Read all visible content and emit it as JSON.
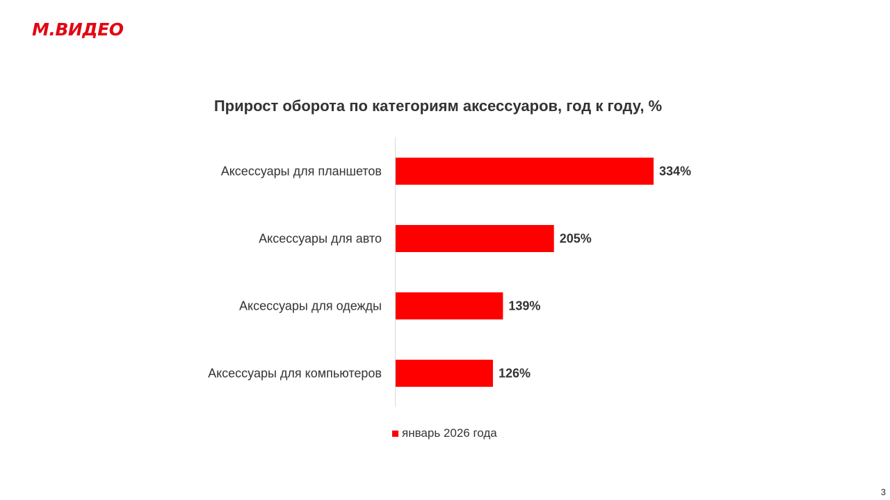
{
  "brand": {
    "logo_text": "М.ВИДЕО",
    "color": "#e30613"
  },
  "page_number": "3",
  "chart_data": {
    "type": "bar",
    "orientation": "horizontal",
    "title": "Прирост оборота по категориям аксессуаров, год к году, %",
    "categories": [
      "Аксессуары для планшетов",
      "Аксессуары для авто",
      "Аксессуары для одежды",
      "Аксессуары для компьютеров"
    ],
    "series": [
      {
        "name": "январь 2026 года",
        "values": [
          334,
          205,
          139,
          126
        ],
        "labels": [
          "334%",
          "205%",
          "139%",
          "126%"
        ],
        "color": "#ff0000"
      }
    ],
    "xlim": [
      0,
      400
    ],
    "grid": false,
    "legend": "bottom"
  }
}
